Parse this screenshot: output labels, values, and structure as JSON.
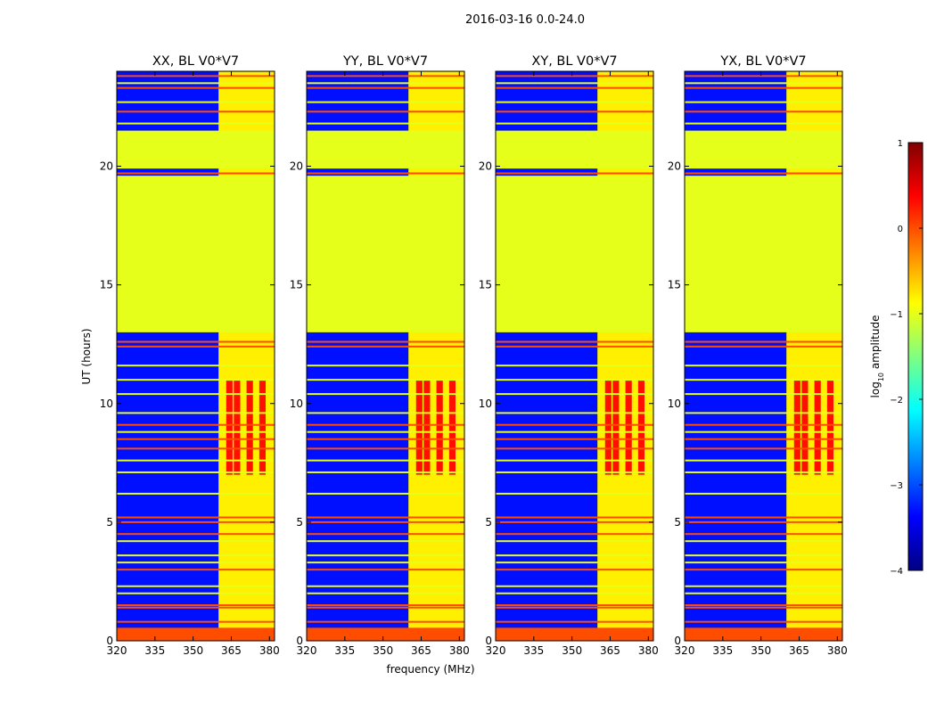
{
  "figure_title": "2016-03-16 0.0-24.0",
  "colors": {
    "jet": [
      "#000080",
      "#0000ff",
      "#0080ff",
      "#00ffff",
      "#80ff80",
      "#ffff00",
      "#ff8000",
      "#ff0000",
      "#800000"
    ],
    "frame": "#000000",
    "background": "#ffffff"
  },
  "chart_data": {
    "type": "heatmap",
    "xlabel": "frequency (MHz)",
    "ylabel": "UT (hours)",
    "xlim": [
      320,
      382
    ],
    "ylim": [
      0,
      24
    ],
    "xticks": [
      320,
      335,
      350,
      365,
      380
    ],
    "yticks": [
      0,
      5,
      10,
      15,
      20
    ],
    "panels": [
      {
        "title": "XX, BL V0*V7"
      },
      {
        "title": "YY, BL V0*V7"
      },
      {
        "title": "XY, BL V0*V7"
      },
      {
        "title": "YX, BL V0*V7"
      }
    ],
    "background_log_amplitude": -3.3,
    "flagged_value": -1.0,
    "flagged_time_ranges": [
      [
        13.0,
        19.6
      ],
      [
        19.9,
        21.5
      ]
    ],
    "bottom_band": {
      "from": 0.0,
      "to": 0.55,
      "value": 0.0
    },
    "rfi_band": {
      "freq_from": 360,
      "freq_to": 382,
      "value": -0.8
    },
    "hot_channels": [
      363,
      366,
      371,
      376
    ],
    "hot_time_range": [
      7.0,
      11.0
    ],
    "hot_value": 0.3,
    "lines": [
      {
        "t": 0.8,
        "v": 0.0
      },
      {
        "t": 1.4,
        "v": 0.0
      },
      {
        "t": 1.5,
        "v": 0.0
      },
      {
        "t": 2.0,
        "v": -1.0
      },
      {
        "t": 2.3,
        "v": -1.0
      },
      {
        "t": 3.0,
        "v": 0.0
      },
      {
        "t": 3.3,
        "v": -1.0
      },
      {
        "t": 3.6,
        "v": -1.0
      },
      {
        "t": 4.2,
        "v": -1.0
      },
      {
        "t": 4.5,
        "v": 0.0
      },
      {
        "t": 5.0,
        "v": 0.0
      },
      {
        "t": 5.2,
        "v": 0.0
      },
      {
        "t": 6.2,
        "v": -1.0
      },
      {
        "t": 7.1,
        "v": -1.0
      },
      {
        "t": 7.6,
        "v": -1.0
      },
      {
        "t": 8.1,
        "v": 0.0
      },
      {
        "t": 8.5,
        "v": 0.0
      },
      {
        "t": 8.8,
        "v": -1.0
      },
      {
        "t": 9.1,
        "v": 0.0
      },
      {
        "t": 9.6,
        "v": -1.0
      },
      {
        "t": 10.4,
        "v": -1.0
      },
      {
        "t": 11.0,
        "v": -1.0
      },
      {
        "t": 11.6,
        "v": -1.0
      },
      {
        "t": 12.4,
        "v": 0.0
      },
      {
        "t": 12.6,
        "v": 0.0
      },
      {
        "t": 19.7,
        "v": 0.0
      },
      {
        "t": 21.8,
        "v": -1.0
      },
      {
        "t": 22.3,
        "v": 0.0
      },
      {
        "t": 22.7,
        "v": -1.0
      },
      {
        "t": 23.3,
        "v": 0.0
      },
      {
        "t": 23.5,
        "v": -1.0
      },
      {
        "t": 23.8,
        "v": 0.0
      }
    ],
    "colorbar": {
      "label": "log10 amplitude",
      "label_base": "log",
      "label_sub": "10",
      "label_rest": " amplitude",
      "range": [
        -4,
        1
      ],
      "ticks": [
        {
          "value": 1,
          "text": "1"
        },
        {
          "value": 0,
          "text": "0"
        },
        {
          "value": -1,
          "text": "−1"
        },
        {
          "value": -2,
          "text": "−2"
        },
        {
          "value": -3,
          "text": "−3"
        },
        {
          "value": -4,
          "text": "−4"
        }
      ]
    }
  }
}
